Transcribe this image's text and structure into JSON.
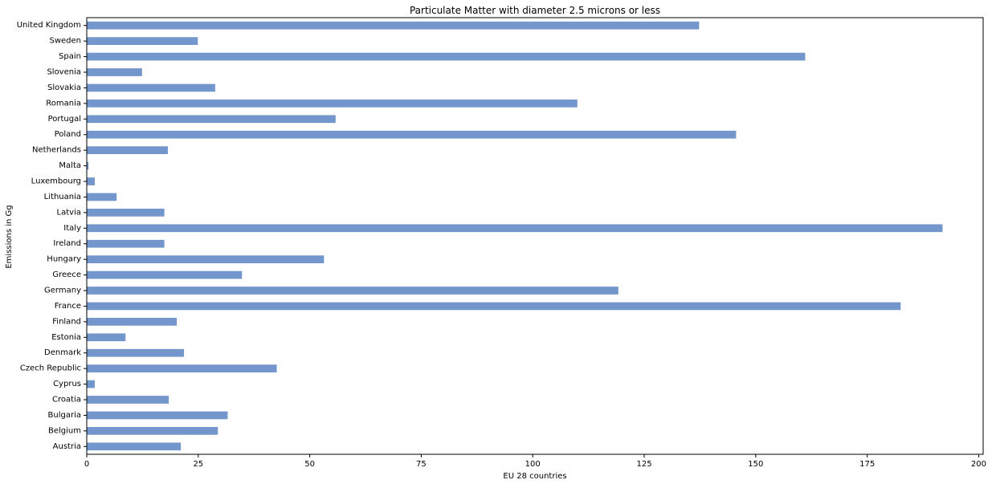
{
  "chart_data": {
    "type": "bar",
    "orientation": "horizontal",
    "title": "Particulate Matter with diameter 2.5 microns or less",
    "xlabel": "EU 28 countries",
    "ylabel": "Emissions in Gg",
    "xlim": [
      0,
      201
    ],
    "x_ticks": [
      0,
      25,
      50,
      75,
      100,
      125,
      150,
      175,
      200
    ],
    "grid": false,
    "bar_color": "#7396cc",
    "categories": [
      "United Kingdom",
      "Sweden",
      "Spain",
      "Slovenia",
      "Slovakia",
      "Romania",
      "Portugal",
      "Poland",
      "Netherlands",
      "Malta",
      "Luxembourg",
      "Lithuania",
      "Latvia",
      "Italy",
      "Ireland",
      "Hungary",
      "Greece",
      "Germany",
      "France",
      "Finland",
      "Estonia",
      "Denmark",
      "Czech Republic",
      "Cyprus",
      "Croatia",
      "Bulgaria",
      "Belgium",
      "Austria"
    ],
    "values": [
      137.3,
      24.9,
      161.1,
      12.4,
      28.8,
      110.0,
      55.8,
      145.6,
      18.2,
      0.4,
      1.8,
      6.7,
      17.4,
      191.9,
      17.4,
      53.2,
      34.8,
      119.2,
      182.5,
      20.2,
      8.7,
      21.8,
      42.6,
      1.8,
      18.4,
      31.6,
      29.4,
      21.1
    ]
  }
}
